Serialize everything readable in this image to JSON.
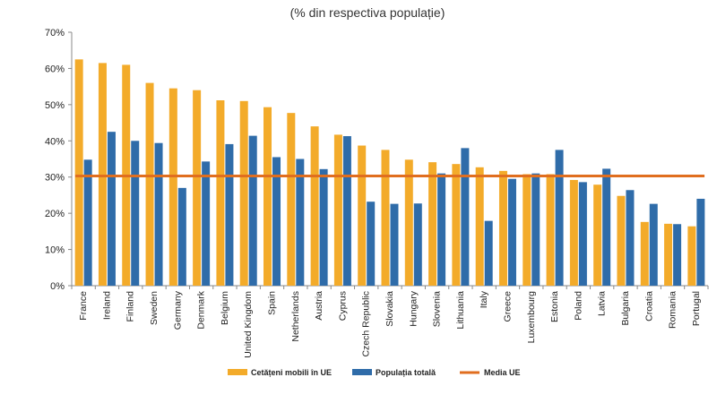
{
  "chart_data": {
    "type": "bar",
    "subtitle": "(% din respectiva populație)",
    "categories": [
      "France",
      "Ireland",
      "Finland",
      "Sweden",
      "Germany",
      "Denmark",
      "Belgium",
      "United Kingdom",
      "Spain",
      "Netherlands",
      "Austria",
      "Cyprus",
      "Czech Republic",
      "Slovakia",
      "Hungary",
      "Slovenia",
      "Lithuania",
      "Italy",
      "Greece",
      "Luxembourg",
      "Estonia",
      "Poland",
      "Latvia",
      "Bulgaria",
      "Croatia",
      "Romania",
      "Portugal"
    ],
    "series": [
      {
        "name": "Cetățeni mobili în UE",
        "color": "#f3ab2a",
        "values": [
          62.5,
          61.5,
          61,
          56,
          54.5,
          54,
          51.2,
          51,
          49.3,
          47.7,
          44,
          41.7,
          38.7,
          37.5,
          34.8,
          34.1,
          33.6,
          32.7,
          31.7,
          30.8,
          30.8,
          29.2,
          27.9,
          24.8,
          17.6,
          17.1,
          16.4
        ]
      },
      {
        "name": "Populația totală",
        "color": "#2f6ca9",
        "values": [
          34.8,
          42.5,
          40,
          39.4,
          27,
          34.3,
          39.1,
          41.4,
          35.5,
          35,
          32.2,
          41.3,
          23.2,
          22.6,
          22.7,
          31,
          38,
          17.9,
          29.5,
          31,
          37.5,
          28.6,
          32.3,
          26.4,
          22.6,
          17,
          24
        ]
      }
    ],
    "reference_line": {
      "name": "Media UE",
      "value": 30.3,
      "color": "#e06e1f"
    },
    "y_ticks": [
      "0%",
      "10%",
      "20%",
      "30%",
      "40%",
      "50%",
      "60%",
      "70%"
    ],
    "ylim": [
      0,
      70
    ],
    "legend_position": "bottom",
    "grid": false
  }
}
